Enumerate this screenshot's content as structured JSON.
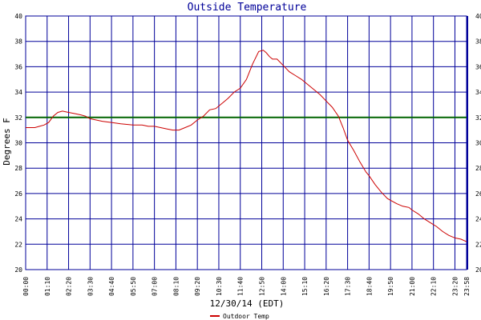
{
  "chart_data": {
    "type": "line",
    "title": "Outside Temperature",
    "xlabel": "12/30/14 (EDT)",
    "ylabel": "Degrees F",
    "ylim": [
      20,
      40
    ],
    "y_ticks": [
      "20",
      "22",
      "24",
      "26",
      "28",
      "30",
      "32",
      "34",
      "36",
      "38",
      "40"
    ],
    "x_ticks": [
      "00:00",
      "01:10",
      "02:20",
      "03:30",
      "04:40",
      "05:50",
      "07:00",
      "08:10",
      "09:20",
      "10:30",
      "11:40",
      "12:50",
      "14:00",
      "15:10",
      "16:20",
      "17:30",
      "18:40",
      "19:50",
      "21:00",
      "22:10",
      "23:20",
      "23:58"
    ],
    "reference_line": {
      "value": 32,
      "color": "#006400"
    },
    "grid": true,
    "legend_position": "bottom-left",
    "colors": {
      "plot_border": "#000099",
      "grid": "#000099",
      "series": "#cc0000",
      "title": "#000099"
    },
    "series": [
      {
        "name": "Outdoor Temp",
        "x": [
          "00:00",
          "00:15",
          "00:30",
          "00:45",
          "01:00",
          "01:15",
          "01:30",
          "01:45",
          "02:00",
          "02:20",
          "02:40",
          "03:00",
          "03:15",
          "03:30",
          "03:50",
          "04:10",
          "04:40",
          "05:10",
          "05:50",
          "06:20",
          "06:40",
          "07:00",
          "07:20",
          "07:40",
          "08:00",
          "08:20",
          "08:40",
          "09:00",
          "09:20",
          "09:40",
          "10:00",
          "10:20",
          "10:40",
          "11:00",
          "11:20",
          "11:40",
          "12:00",
          "12:20",
          "12:40",
          "12:55",
          "13:05",
          "13:15",
          "13:25",
          "13:40",
          "14:00",
          "14:20",
          "14:40",
          "15:00",
          "15:20",
          "15:40",
          "16:00",
          "16:20",
          "16:40",
          "17:00",
          "17:15",
          "17:30",
          "17:50",
          "18:10",
          "18:30",
          "18:40",
          "19:00",
          "19:20",
          "19:40",
          "19:55",
          "20:10",
          "20:30",
          "20:50",
          "21:00",
          "21:20",
          "21:40",
          "22:00",
          "22:20",
          "22:40",
          "23:00",
          "23:20",
          "23:40",
          "23:58"
        ],
        "y": [
          31.2,
          31.2,
          31.2,
          31.3,
          31.4,
          31.6,
          32.1,
          32.4,
          32.5,
          32.4,
          32.3,
          32.2,
          32.1,
          31.9,
          31.8,
          31.7,
          31.6,
          31.5,
          31.4,
          31.4,
          31.3,
          31.3,
          31.2,
          31.1,
          31.0,
          31.0,
          31.2,
          31.4,
          31.8,
          32.1,
          32.6,
          32.7,
          33.1,
          33.5,
          34.0,
          34.3,
          35.0,
          36.2,
          37.2,
          37.3,
          37.1,
          36.8,
          36.6,
          36.6,
          36.1,
          35.6,
          35.3,
          35.0,
          34.6,
          34.2,
          33.8,
          33.3,
          32.8,
          32.1,
          31.2,
          30.2,
          29.4,
          28.5,
          27.7,
          27.4,
          26.7,
          26.1,
          25.6,
          25.4,
          25.2,
          25.0,
          24.9,
          24.7,
          24.4,
          24.0,
          23.7,
          23.4,
          23.0,
          22.7,
          22.5,
          22.4,
          22.2
        ]
      }
    ]
  }
}
